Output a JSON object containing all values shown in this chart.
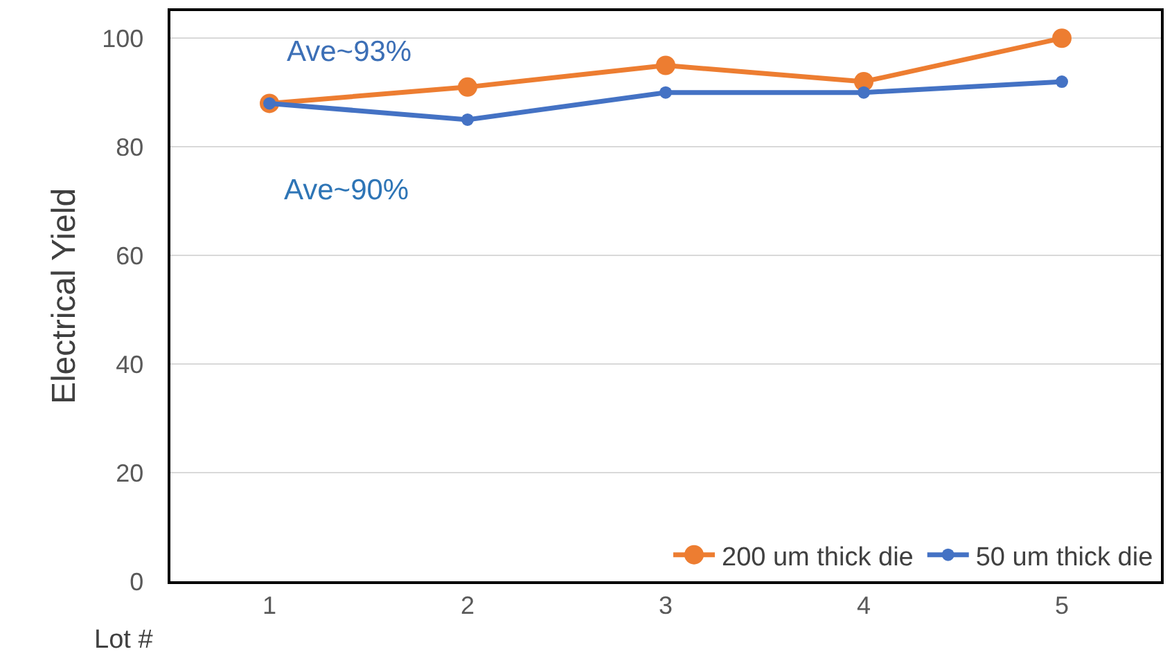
{
  "chart_data": {
    "type": "line",
    "xlabel": "Lot #",
    "ylabel": "Electrical Yield",
    "categories": [
      "1",
      "2",
      "3",
      "4",
      "5"
    ],
    "series": [
      {
        "name": "200 um thick die",
        "color": "#ed7d31",
        "values": [
          88,
          91,
          95,
          92,
          100
        ]
      },
      {
        "name": "50 um thick die",
        "color": "#4472c4",
        "values": [
          88,
          85,
          90,
          90,
          92
        ]
      }
    ],
    "annotations": [
      "Ave~93%",
      "Ave~90%"
    ],
    "ylim": [
      0,
      105
    ],
    "yticks": [
      0,
      20,
      40,
      60,
      80,
      100
    ],
    "grid": "y",
    "legend": "bottom right",
    "marker": "circle",
    "line_style": "solid"
  }
}
